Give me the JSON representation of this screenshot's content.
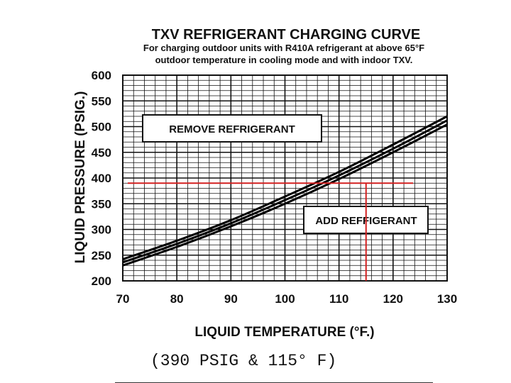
{
  "chart_data": {
    "type": "line",
    "title": "TXV REFRIGERANT CHARGING CURVE",
    "subtitle_line1": "For charging  outdoor units with R410A refrigerant at above 65°F",
    "subtitle_line2": "outdoor temperature in cooling mode and with indoor TXV.",
    "xlabel": "LIQUID TEMPERATURE (°F.)",
    "ylabel": "LIQUID PRESSURE (PSIG.)",
    "xlim": [
      70,
      130
    ],
    "ylim": [
      200,
      600
    ],
    "x_ticks": [
      70,
      80,
      90,
      100,
      110,
      120,
      130
    ],
    "y_ticks": [
      200,
      250,
      300,
      350,
      400,
      450,
      500,
      550,
      600
    ],
    "grid": true,
    "series": [
      {
        "name": "upper",
        "x": [
          70,
          80,
          90,
          100,
          110,
          120,
          130
        ],
        "y": [
          242,
          278,
          318,
          364,
          412,
          465,
          520
        ]
      },
      {
        "name": "middle",
        "x": [
          70,
          80,
          90,
          100,
          110,
          120,
          130
        ],
        "y": [
          236,
          272,
          312,
          357,
          405,
          457,
          512
        ]
      },
      {
        "name": "lower",
        "x": [
          70,
          80,
          90,
          100,
          110,
          120,
          130
        ],
        "y": [
          230,
          266,
          306,
          350,
          398,
          450,
          504
        ]
      }
    ],
    "annotations": {
      "remove_label": "REMOVE REFRIGERANT",
      "add_label": "ADD REFFIGERANT",
      "marker_pressure": 390,
      "marker_temperature": 115,
      "marker_color": "#d42020"
    }
  },
  "caption": "(390 PSIG & 115° F)"
}
